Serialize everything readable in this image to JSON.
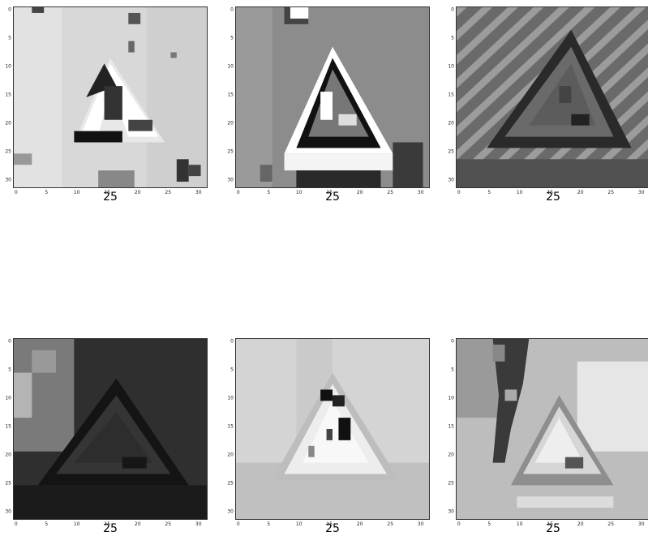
{
  "panels": [
    {
      "caption": "25",
      "tone": "light-contrast"
    },
    {
      "caption": "25",
      "tone": "high-contrast"
    },
    {
      "caption": "25",
      "tone": "dark-striped"
    },
    {
      "caption": "25",
      "tone": "dark"
    },
    {
      "caption": "25",
      "tone": "very-light"
    },
    {
      "caption": "25",
      "tone": "medium"
    }
  ],
  "ticks": {
    "x": [
      "0",
      "5",
      "10",
      "15",
      "20",
      "25",
      "30"
    ],
    "y": [
      "0",
      "5",
      "10",
      "15",
      "20",
      "25",
      "30"
    ]
  },
  "colors": {
    "axis": "#333333",
    "caption": "#000000"
  }
}
